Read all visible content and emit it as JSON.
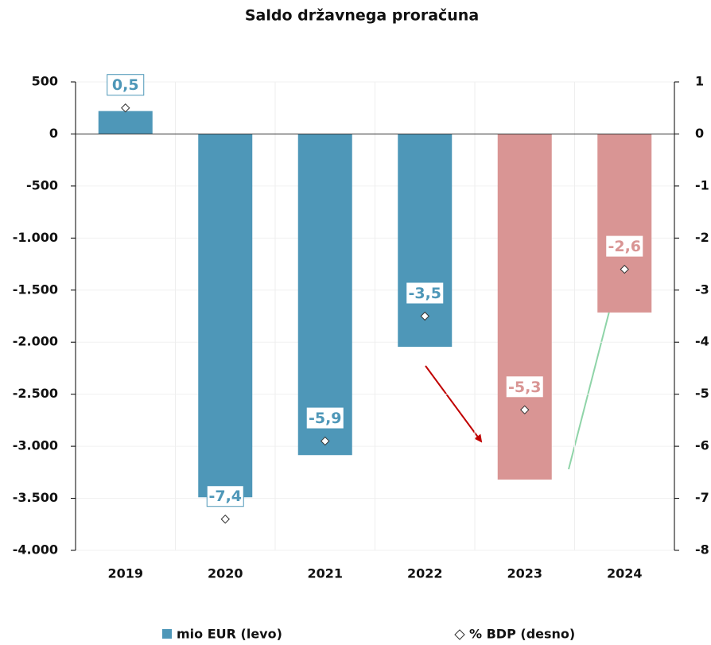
{
  "chart_data": {
    "type": "bar",
    "title": "Saldo državnega proračuna",
    "categories": [
      "2019",
      "2020",
      "2021",
      "2022",
      "2023",
      "2024"
    ],
    "series": [
      {
        "name": "mio EUR (levo)",
        "color": "#4e97b8",
        "colors": [
          "#4e97b8",
          "#4e97b8",
          "#4e97b8",
          "#4e97b8",
          "#d99594",
          "#d99594"
        ],
        "values": [
          220,
          -3490,
          -3085,
          -2045,
          -3320,
          -1715
        ]
      },
      {
        "name": "% BDP (desno)",
        "axis": "y2",
        "color": "#ffffff",
        "values": [
          0.5,
          -7.4,
          -5.9,
          -3.5,
          -5.3,
          -2.6
        ],
        "value_labels": [
          "0,5",
          "-7,4",
          "-5,9",
          "-3,5",
          "-5,3",
          "-2,6"
        ]
      }
    ],
    "ylim": [
      -4000,
      500
    ],
    "yticks": [
      500,
      0,
      -500,
      {
        "value": -1000,
        "label": "-1.000"
      },
      {
        "value": -1500,
        "label": "-1.500"
      },
      {
        "value": -2000,
        "label": "-2.000"
      },
      {
        "value": -2500,
        "label": "-2.500"
      },
      {
        "value": -3000,
        "label": "-3.000"
      },
      {
        "value": -3500,
        "label": "-3.500"
      },
      {
        "value": -4000,
        "label": "-4.000"
      }
    ],
    "y2lim": [
      -8,
      1
    ],
    "y2ticks": [
      1,
      0,
      -1,
      -2,
      -3,
      -4,
      -5,
      -6,
      -7,
      -8
    ],
    "grid": true
  }
}
